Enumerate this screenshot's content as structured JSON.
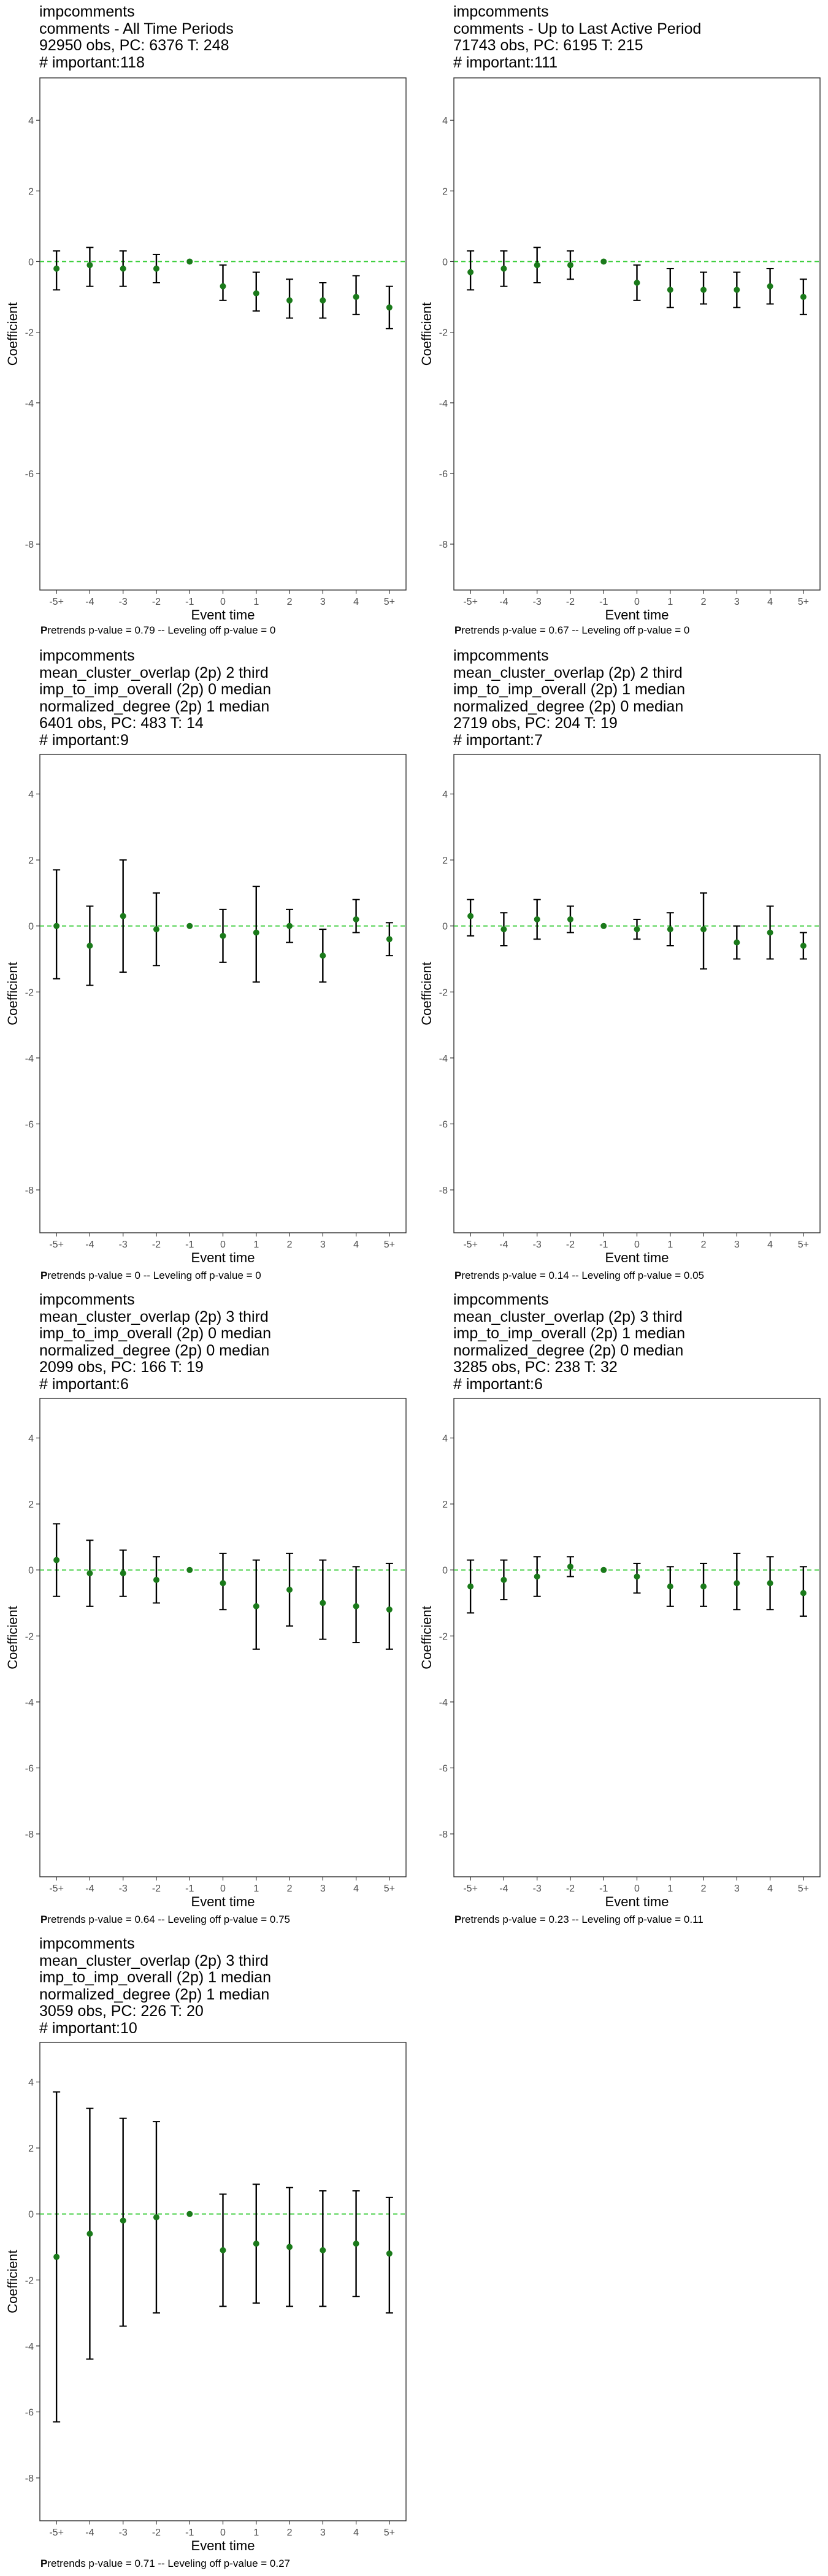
{
  "charts": [
    {
      "title_lines": [
        "impcomments",
        "comments - All Time Periods",
        "92950 obs, PC: 6376 T: 248",
        "# important:118"
      ],
      "footnote": "Pretrends p-value = 0.79 -- Leveling off p-value = 0"
    },
    {
      "title_lines": [
        "impcomments",
        "comments - Up to Last Active Period",
        "71743 obs, PC: 6195 T: 215",
        "# important:111"
      ],
      "footnote": "Pretrends p-value = 0.67 -- Leveling off p-value = 0"
    },
    {
      "title_lines": [
        "impcomments",
        "mean_cluster_overlap (2p) 2 third",
        "imp_to_imp_overall (2p) 0 median",
        "normalized_degree (2p) 1 median",
        "6401 obs, PC: 483 T: 14",
        "# important:9"
      ],
      "footnote": "Pretrends p-value = 0 -- Leveling off p-value = 0"
    },
    {
      "title_lines": [
        "impcomments",
        "mean_cluster_overlap (2p) 2 third",
        "imp_to_imp_overall (2p) 1 median",
        "normalized_degree (2p) 0 median",
        "2719 obs, PC: 204 T: 19",
        "# important:7"
      ],
      "footnote": "Pretrends p-value = 0.14 -- Leveling off p-value = 0.05"
    },
    {
      "title_lines": [
        "impcomments",
        "mean_cluster_overlap (2p) 3 third",
        "imp_to_imp_overall (2p) 0 median",
        "normalized_degree (2p) 0 median",
        "2099 obs, PC: 166 T: 19",
        "# important:6"
      ],
      "footnote": "Pretrends p-value = 0.64 -- Leveling off p-value = 0.75"
    },
    {
      "title_lines": [
        "impcomments",
        "mean_cluster_overlap (2p) 3 third",
        "imp_to_imp_overall (2p) 1 median",
        "normalized_degree (2p) 0 median",
        "3285 obs, PC: 238 T: 32",
        "# important:6"
      ],
      "footnote": "Pretrends p-value = 0.23 -- Leveling off p-value = 0.11"
    },
    {
      "title_lines": [
        "impcomments",
        "mean_cluster_overlap (2p) 3 third",
        "imp_to_imp_overall (2p) 1 median",
        "normalized_degree (2p) 1 median",
        "3059 obs, PC: 226 T: 20",
        "# important:10"
      ],
      "footnote": "Pretrends p-value = 0.71 -- Leveling off p-value = 0.27"
    }
  ],
  "colors": {
    "point": "#1a7a1a",
    "refline": "#33cc33",
    "errorbar": "#000000",
    "axis": "#333333"
  },
  "chart_data": [
    {
      "type": "scatter",
      "title": "impcomments comments - All Time Periods",
      "xlabel": "Event time",
      "ylabel": "Coefficient",
      "categories": [
        "-5+",
        "-4",
        "-3",
        "-2",
        "-1",
        "0",
        "1",
        "2",
        "3",
        "4",
        "5+"
      ],
      "yticks": [
        4,
        2,
        0,
        -2,
        -4,
        -6,
        -8
      ],
      "ylim": [
        -9.3,
        5.2
      ],
      "reference_line": 0,
      "grid": false,
      "series": [
        {
          "values": [
            -0.2,
            -0.1,
            -0.2,
            -0.2,
            0.0,
            -0.7,
            -0.9,
            -1.1,
            -1.1,
            -1.0,
            -1.3
          ],
          "lower": [
            -0.8,
            -0.7,
            -0.7,
            -0.6,
            0.0,
            -1.1,
            -1.4,
            -1.6,
            -1.6,
            -1.5,
            -1.9
          ],
          "upper": [
            0.3,
            0.4,
            0.3,
            0.2,
            0.0,
            -0.1,
            -0.3,
            -0.5,
            -0.6,
            -0.4,
            -0.7
          ]
        }
      ]
    },
    {
      "type": "scatter",
      "title": "impcomments comments - Up to Last Active Period",
      "xlabel": "Event time",
      "ylabel": "Coefficient",
      "categories": [
        "-5+",
        "-4",
        "-3",
        "-2",
        "-1",
        "0",
        "1",
        "2",
        "3",
        "4",
        "5+"
      ],
      "yticks": [
        4,
        2,
        0,
        -2,
        -4,
        -6,
        -8
      ],
      "ylim": [
        -9.3,
        5.2
      ],
      "reference_line": 0,
      "grid": false,
      "series": [
        {
          "values": [
            -0.3,
            -0.2,
            -0.1,
            -0.1,
            0.0,
            -0.6,
            -0.8,
            -0.8,
            -0.8,
            -0.7,
            -1.0
          ],
          "lower": [
            -0.8,
            -0.7,
            -0.6,
            -0.5,
            0.0,
            -1.1,
            -1.3,
            -1.2,
            -1.3,
            -1.2,
            -1.5
          ],
          "upper": [
            0.3,
            0.3,
            0.4,
            0.3,
            0.0,
            -0.1,
            -0.2,
            -0.3,
            -0.3,
            -0.2,
            -0.5
          ]
        }
      ]
    },
    {
      "type": "scatter",
      "title": "impcomments mean_cluster_overlap (2p) 2 third imp_to_imp_overall (2p) 0 median normalized_degree (2p) 1 median",
      "xlabel": "Event time",
      "ylabel": "Coefficient",
      "categories": [
        "-5+",
        "-4",
        "-3",
        "-2",
        "-1",
        "0",
        "1",
        "2",
        "3",
        "4",
        "5+"
      ],
      "yticks": [
        4,
        2,
        0,
        -2,
        -4,
        -6,
        -8
      ],
      "ylim": [
        -9.3,
        5.2
      ],
      "reference_line": 0,
      "grid": false,
      "series": [
        {
          "values": [
            0.0,
            -0.6,
            0.3,
            -0.1,
            0.0,
            -0.3,
            -0.2,
            0.0,
            -0.9,
            0.2,
            -0.4
          ],
          "lower": [
            -1.6,
            -1.8,
            -1.4,
            -1.2,
            0.0,
            -1.1,
            -1.7,
            -0.5,
            -1.7,
            -0.2,
            -0.9
          ],
          "upper": [
            1.7,
            0.6,
            2.0,
            1.0,
            0.0,
            0.5,
            1.2,
            0.5,
            -0.1,
            0.8,
            0.1
          ]
        }
      ]
    },
    {
      "type": "scatter",
      "title": "impcomments mean_cluster_overlap (2p) 2 third imp_to_imp_overall (2p) 1 median normalized_degree (2p) 0 median",
      "xlabel": "Event time",
      "ylabel": "Coefficient",
      "categories": [
        "-5+",
        "-4",
        "-3",
        "-2",
        "-1",
        "0",
        "1",
        "2",
        "3",
        "4",
        "5+"
      ],
      "yticks": [
        4,
        2,
        0,
        -2,
        -4,
        -6,
        -8
      ],
      "ylim": [
        -9.3,
        5.2
      ],
      "reference_line": 0,
      "grid": false,
      "series": [
        {
          "values": [
            0.3,
            -0.1,
            0.2,
            0.2,
            0.0,
            -0.1,
            -0.1,
            -0.1,
            -0.5,
            -0.2,
            -0.6
          ],
          "lower": [
            -0.3,
            -0.6,
            -0.4,
            -0.2,
            0.0,
            -0.4,
            -0.6,
            -1.3,
            -1.0,
            -1.0,
            -1.0
          ],
          "upper": [
            0.8,
            0.4,
            0.8,
            0.6,
            0.0,
            0.2,
            0.4,
            1.0,
            0.0,
            0.6,
            -0.2
          ]
        }
      ]
    },
    {
      "type": "scatter",
      "title": "impcomments mean_cluster_overlap (2p) 3 third imp_to_imp_overall (2p) 0 median normalized_degree (2p) 0 median",
      "xlabel": "Event time",
      "ylabel": "Coefficient",
      "categories": [
        "-5+",
        "-4",
        "-3",
        "-2",
        "-1",
        "0",
        "1",
        "2",
        "3",
        "4",
        "5+"
      ],
      "yticks": [
        4,
        2,
        0,
        -2,
        -4,
        -6,
        -8
      ],
      "ylim": [
        -9.3,
        5.2
      ],
      "reference_line": 0,
      "grid": false,
      "series": [
        {
          "values": [
            0.3,
            -0.1,
            -0.1,
            -0.3,
            0.0,
            -0.4,
            -1.1,
            -0.6,
            -1.0,
            -1.1,
            -1.2
          ],
          "lower": [
            -0.8,
            -1.1,
            -0.8,
            -1.0,
            0.0,
            -1.2,
            -2.4,
            -1.7,
            -2.1,
            -2.2,
            -2.4
          ],
          "upper": [
            1.4,
            0.9,
            0.6,
            0.4,
            0.0,
            0.5,
            0.3,
            0.5,
            0.3,
            0.1,
            0.2
          ]
        }
      ]
    },
    {
      "type": "scatter",
      "title": "impcomments mean_cluster_overlap (2p) 3 third imp_to_imp_overall (2p) 1 median normalized_degree (2p) 0 median",
      "xlabel": "Event time",
      "ylabel": "Coefficient",
      "categories": [
        "-5+",
        "-4",
        "-3",
        "-2",
        "-1",
        "0",
        "1",
        "2",
        "3",
        "4",
        "5+"
      ],
      "yticks": [
        4,
        2,
        0,
        -2,
        -4,
        -6,
        -8
      ],
      "ylim": [
        -9.3,
        5.2
      ],
      "reference_line": 0,
      "grid": false,
      "series": [
        {
          "values": [
            -0.5,
            -0.3,
            -0.2,
            0.1,
            0.0,
            -0.2,
            -0.5,
            -0.5,
            -0.4,
            -0.4,
            -0.7
          ],
          "lower": [
            -1.3,
            -0.9,
            -0.8,
            -0.2,
            0.0,
            -0.7,
            -1.1,
            -1.1,
            -1.2,
            -1.2,
            -1.4
          ],
          "upper": [
            0.3,
            0.3,
            0.4,
            0.4,
            0.0,
            0.2,
            0.1,
            0.2,
            0.5,
            0.4,
            0.1
          ]
        }
      ]
    },
    {
      "type": "scatter",
      "title": "impcomments mean_cluster_overlap (2p) 3 third imp_to_imp_overall (2p) 1 median normalized_degree (2p) 1 median",
      "xlabel": "Event time",
      "ylabel": "Coefficient",
      "categories": [
        "-5+",
        "-4",
        "-3",
        "-2",
        "-1",
        "0",
        "1",
        "2",
        "3",
        "4",
        "5+"
      ],
      "yticks": [
        4,
        2,
        0,
        -2,
        -4,
        -6,
        -8
      ],
      "ylim": [
        -9.3,
        5.2
      ],
      "reference_line": 0,
      "grid": false,
      "series": [
        {
          "values": [
            -1.3,
            -0.6,
            -0.2,
            -0.1,
            0.0,
            -1.1,
            -0.9,
            -1.0,
            -1.1,
            -0.9,
            -1.2
          ],
          "lower": [
            -6.3,
            -4.4,
            -3.4,
            -3.0,
            0.0,
            -2.8,
            -2.7,
            -2.8,
            -2.8,
            -2.5,
            -3.0
          ],
          "upper": [
            3.7,
            3.2,
            2.9,
            2.8,
            0.0,
            0.6,
            0.9,
            0.8,
            0.7,
            0.7,
            0.5
          ]
        }
      ]
    }
  ]
}
